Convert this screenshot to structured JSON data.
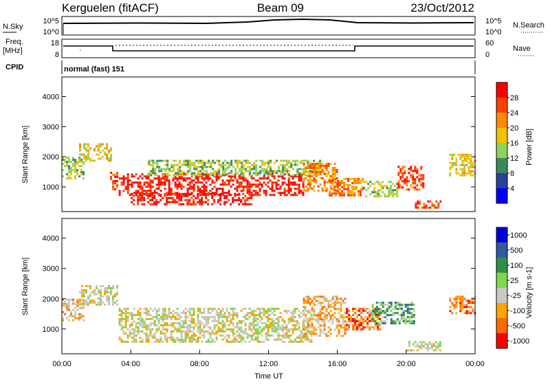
{
  "header": {
    "station": "Kerguelen (fitACF)",
    "beam": "Beam 09",
    "date": "23/Oct/2012"
  },
  "nsky_panel": {
    "left_label": "N.Sky",
    "left_ticks": [
      "10^5",
      "10^0"
    ],
    "right_label": "N.Search",
    "right_ticks": [
      "10^5",
      "10^0"
    ]
  },
  "freq_panel": {
    "left_label_1": "Freq.",
    "left_label_2": "[MHz]",
    "left_ticks": [
      "18",
      "8"
    ],
    "right_label": "Nave",
    "right_ticks": [
      "60",
      "0"
    ]
  },
  "cpid_panel": {
    "label": "CPID",
    "value": "normal (fast) 151"
  },
  "colors": {
    "power_scale": [
      "#0000ff",
      "#2b3f9c",
      "#3c8a5c",
      "#8fd25a",
      "#f2c200",
      "#ff8a00",
      "#ff4000",
      "#ff0000"
    ],
    "velocity_scale": [
      "#0000dd",
      "#2f5a9e",
      "#2e9049",
      "#7fd84a",
      "#c8c8c0",
      "#ffa500",
      "#ff6a00",
      "#ff0000"
    ],
    "ground_scatter": "#c8c8c0"
  },
  "chart_data": [
    {
      "type": "heatmap",
      "panel": "power",
      "ylabel": "Slant Range [km]",
      "xlim": [
        "00:00",
        "24:00"
      ],
      "ylim": [
        180,
        4650
      ],
      "yticks": [
        1000,
        2000,
        3000,
        4000
      ],
      "colorbar": {
        "label": "Power [dB]",
        "ticks": [
          "4",
          "8",
          "12",
          "16",
          "20",
          "24",
          "28"
        ],
        "range": [
          0,
          32
        ]
      },
      "features": [
        {
          "t0": 0.0,
          "t1": 1.2,
          "r0": 1300,
          "r1": 2000,
          "level": 3
        },
        {
          "t0": 1.0,
          "t1": 2.8,
          "r0": 1900,
          "r1": 2450,
          "level": 4
        },
        {
          "t0": 2.8,
          "t1": 3.2,
          "r0": 900,
          "r1": 1500,
          "level": 6
        },
        {
          "t0": 3.3,
          "t1": 14.0,
          "r0": 700,
          "r1": 1450,
          "level": 7
        },
        {
          "t0": 4.0,
          "t1": 11.0,
          "r0": 400,
          "r1": 800,
          "level": 7
        },
        {
          "t0": 5.0,
          "t1": 15.0,
          "r0": 1400,
          "r1": 1900,
          "level": 3
        },
        {
          "t0": 14.0,
          "t1": 16.0,
          "r0": 900,
          "r1": 1800,
          "level": 5
        },
        {
          "t0": 15.5,
          "t1": 17.5,
          "r0": 700,
          "r1": 1300,
          "level": 5
        },
        {
          "t0": 17.5,
          "t1": 19.5,
          "r0": 700,
          "r1": 1200,
          "level": 3
        },
        {
          "t0": 19.5,
          "t1": 21.0,
          "r0": 900,
          "r1": 1700,
          "level": 6
        },
        {
          "t0": 20.5,
          "t1": 22.0,
          "r0": 300,
          "r1": 550,
          "level": 6
        },
        {
          "t0": 22.5,
          "t1": 24.0,
          "r0": 1400,
          "r1": 2100,
          "level": 4
        }
      ]
    },
    {
      "type": "heatmap",
      "panel": "velocity",
      "ylabel": "Slant Range [km]",
      "xlabel": "Time UT",
      "xlim": [
        "00:00",
        "24:00"
      ],
      "ylim": [
        180,
        4650
      ],
      "xticks": [
        "00:00",
        "04:00",
        "08:00",
        "12:00",
        "16:00",
        "20:00",
        "00:00"
      ],
      "yticks": [
        1000,
        2000,
        3000,
        4000
      ],
      "colorbar": {
        "label": "Velocity [m s-1]",
        "ticks": [
          "1000",
          "500",
          "100",
          "25",
          "-25",
          "-100",
          "-500",
          "-1000"
        ]
      },
      "features": [
        {
          "t0": 0.0,
          "t1": 1.2,
          "r0": 1300,
          "r1": 2000,
          "level": 5
        },
        {
          "t0": 1.0,
          "t1": 3.2,
          "r0": 1800,
          "r1": 2450,
          "level": 4
        },
        {
          "t0": 3.3,
          "t1": 14.5,
          "r0": 600,
          "r1": 1700,
          "level": 4
        },
        {
          "t0": 14.0,
          "t1": 16.5,
          "r0": 800,
          "r1": 2100,
          "level": 5
        },
        {
          "t0": 16.5,
          "t1": 18.5,
          "r0": 1000,
          "r1": 1700,
          "level": 6
        },
        {
          "t0": 18.0,
          "t1": 20.5,
          "r0": 1200,
          "r1": 1900,
          "level": 2
        },
        {
          "t0": 20.0,
          "t1": 22.0,
          "r0": 300,
          "r1": 600,
          "level": 4
        },
        {
          "t0": 22.5,
          "t1": 24.0,
          "r0": 1500,
          "r1": 2100,
          "level": 6
        }
      ]
    }
  ]
}
